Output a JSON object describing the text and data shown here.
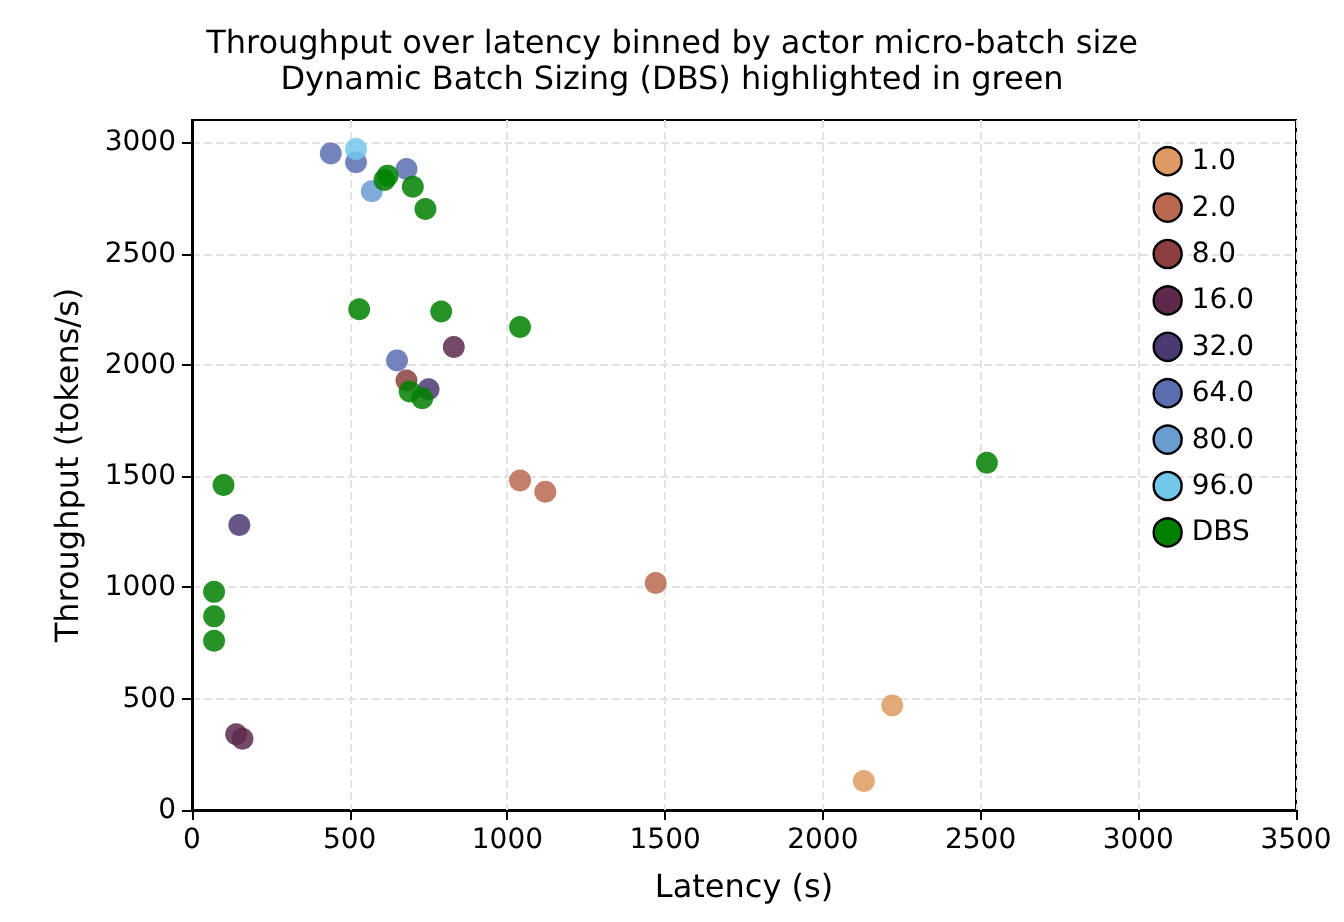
{
  "chart_data": {
    "type": "scatter",
    "title": "Throughput over latency binned by actor micro-batch size",
    "subtitle": "Dynamic Batch Sizing (DBS) highlighted in green",
    "xlabel": "Latency (s)",
    "ylabel": "Throughput (tokens/s)",
    "xlim": [
      0,
      3500
    ],
    "xticks": [
      0,
      500,
      1000,
      1500,
      2000,
      2500,
      3000,
      3500
    ],
    "ylim": [
      0,
      3100
    ],
    "yticks": [
      0,
      500,
      1000,
      1500,
      2000,
      2500,
      3000
    ],
    "grid": true,
    "legend": "top right",
    "marker": "circle",
    "series": [
      {
        "name": "1.0",
        "color": "#dd9a62",
        "x": [
          2220,
          2130
        ],
        "values": [
          470,
          130
        ]
      },
      {
        "name": "2.0",
        "color": "#b8694f",
        "x": [
          1040,
          1120,
          1470
        ],
        "values": [
          1480,
          1430,
          1020
        ]
      },
      {
        "name": "8.0",
        "color": "#8b3f3f",
        "x": [
          680
        ],
        "values": [
          1930
        ]
      },
      {
        "name": "16.0",
        "color": "#5d2a4e",
        "x": [
          830,
          140,
          160
        ],
        "values": [
          2080,
          340,
          320
        ]
      },
      {
        "name": "32.0",
        "color": "#4b3a72",
        "x": [
          750,
          150
        ],
        "values": [
          1890,
          1280
        ]
      },
      {
        "name": "64.0",
        "color": "#5b6fb0",
        "x": [
          440,
          520,
          680,
          650
        ],
        "values": [
          2950,
          2910,
          2880,
          2020
        ]
      },
      {
        "name": "80.0",
        "color": "#6a9bd1",
        "x": [
          570
        ],
        "values": [
          2780
        ]
      },
      {
        "name": "96.0",
        "color": "#73c8ea",
        "x": [
          520
        ],
        "values": [
          2970
        ]
      },
      {
        "name": "DBS",
        "color": "#008000",
        "x": [
          610,
          620,
          700,
          740,
          530,
          790,
          1040,
          690,
          730,
          100,
          70,
          70,
          70,
          2520
        ],
        "values": [
          2830,
          2850,
          2800,
          2700,
          2250,
          2240,
          2170,
          1880,
          1850,
          1460,
          980,
          870,
          760,
          1560
        ]
      }
    ]
  }
}
